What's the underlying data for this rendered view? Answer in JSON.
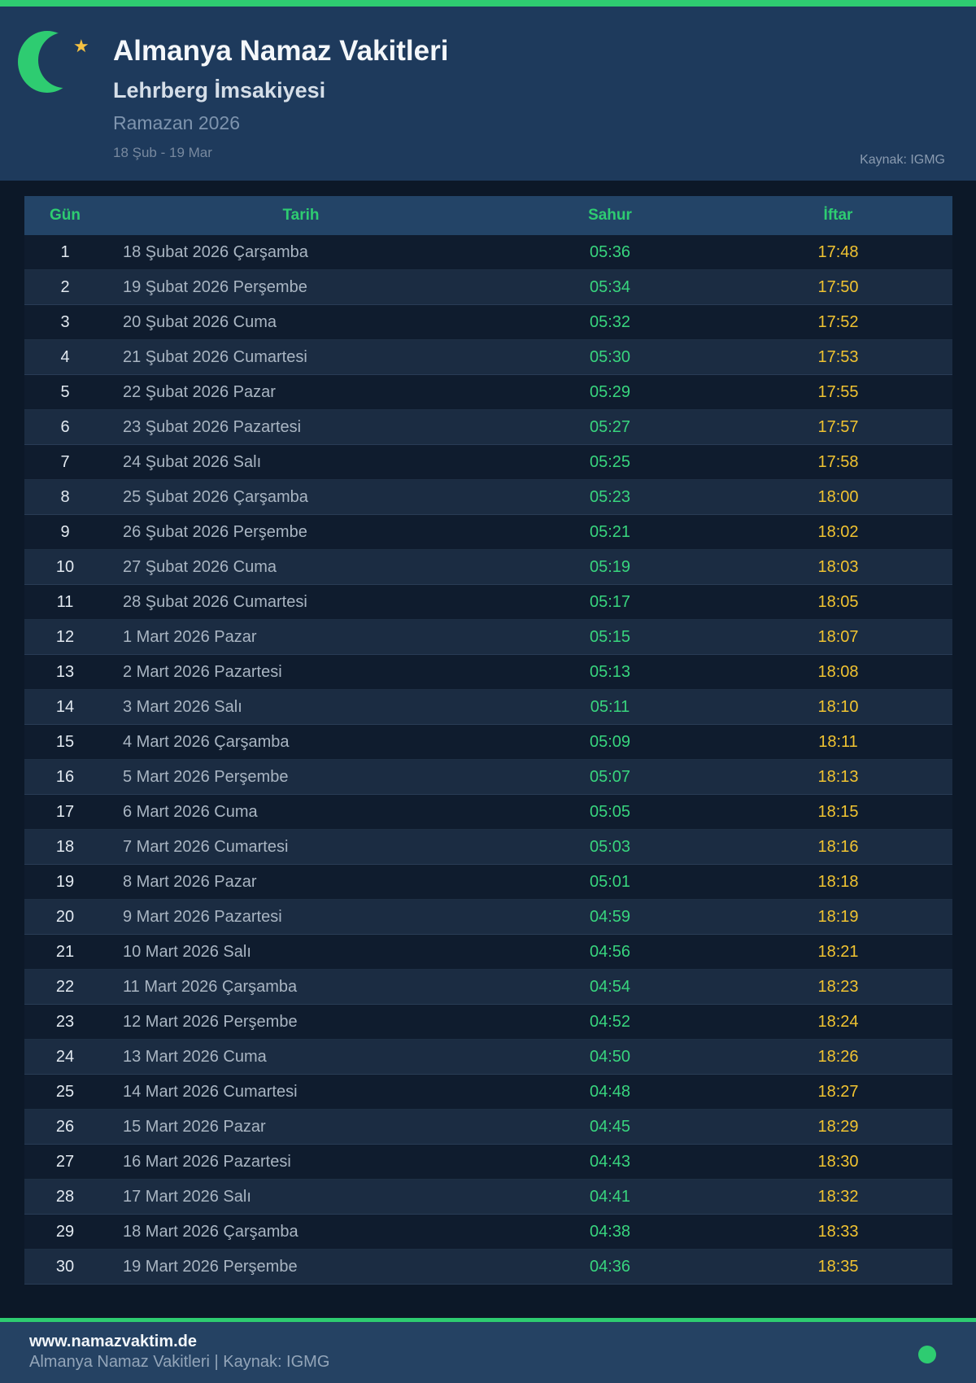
{
  "header": {
    "title": "Almanya Namaz Vakitleri",
    "subtitle": "Lehrberg İmsakiyesi",
    "period": "Ramazan 2026",
    "date_range": "18 Şub - 19 Mar",
    "source": "Kaynak: IGMG",
    "star_glyph": "★"
  },
  "colors": {
    "accent_green": "#2ecc71",
    "sahur_green": "#38d57e",
    "iftar_gold": "#f0c331",
    "header_bg": "#1e3a5c",
    "page_bg": "#0c1828",
    "table_header_bg": "#234467",
    "row_odd": "#0f1c2e",
    "row_even": "#1b2c42",
    "footer_bg": "#254263"
  },
  "table": {
    "columns": [
      "Gün",
      "Tarih",
      "Sahur",
      "İftar"
    ],
    "rows": [
      {
        "day": "1",
        "date": "18 Şubat 2026 Çarşamba",
        "sahur": "05:36",
        "iftar": "17:48"
      },
      {
        "day": "2",
        "date": "19 Şubat 2026 Perşembe",
        "sahur": "05:34",
        "iftar": "17:50"
      },
      {
        "day": "3",
        "date": "20 Şubat 2026 Cuma",
        "sahur": "05:32",
        "iftar": "17:52"
      },
      {
        "day": "4",
        "date": "21 Şubat 2026 Cumartesi",
        "sahur": "05:30",
        "iftar": "17:53"
      },
      {
        "day": "5",
        "date": "22 Şubat 2026 Pazar",
        "sahur": "05:29",
        "iftar": "17:55"
      },
      {
        "day": "6",
        "date": "23 Şubat 2026 Pazartesi",
        "sahur": "05:27",
        "iftar": "17:57"
      },
      {
        "day": "7",
        "date": "24 Şubat 2026 Salı",
        "sahur": "05:25",
        "iftar": "17:58"
      },
      {
        "day": "8",
        "date": "25 Şubat 2026 Çarşamba",
        "sahur": "05:23",
        "iftar": "18:00"
      },
      {
        "day": "9",
        "date": "26 Şubat 2026 Perşembe",
        "sahur": "05:21",
        "iftar": "18:02"
      },
      {
        "day": "10",
        "date": "27 Şubat 2026 Cuma",
        "sahur": "05:19",
        "iftar": "18:03"
      },
      {
        "day": "11",
        "date": "28 Şubat 2026 Cumartesi",
        "sahur": "05:17",
        "iftar": "18:05"
      },
      {
        "day": "12",
        "date": "1 Mart 2026 Pazar",
        "sahur": "05:15",
        "iftar": "18:07"
      },
      {
        "day": "13",
        "date": "2 Mart 2026 Pazartesi",
        "sahur": "05:13",
        "iftar": "18:08"
      },
      {
        "day": "14",
        "date": "3 Mart 2026 Salı",
        "sahur": "05:11",
        "iftar": "18:10"
      },
      {
        "day": "15",
        "date": "4 Mart 2026 Çarşamba",
        "sahur": "05:09",
        "iftar": "18:11"
      },
      {
        "day": "16",
        "date": "5 Mart 2026 Perşembe",
        "sahur": "05:07",
        "iftar": "18:13"
      },
      {
        "day": "17",
        "date": "6 Mart 2026 Cuma",
        "sahur": "05:05",
        "iftar": "18:15"
      },
      {
        "day": "18",
        "date": "7 Mart 2026 Cumartesi",
        "sahur": "05:03",
        "iftar": "18:16"
      },
      {
        "day": "19",
        "date": "8 Mart 2026 Pazar",
        "sahur": "05:01",
        "iftar": "18:18"
      },
      {
        "day": "20",
        "date": "9 Mart 2026 Pazartesi",
        "sahur": "04:59",
        "iftar": "18:19"
      },
      {
        "day": "21",
        "date": "10 Mart 2026 Salı",
        "sahur": "04:56",
        "iftar": "18:21"
      },
      {
        "day": "22",
        "date": "11 Mart 2026 Çarşamba",
        "sahur": "04:54",
        "iftar": "18:23"
      },
      {
        "day": "23",
        "date": "12 Mart 2026 Perşembe",
        "sahur": "04:52",
        "iftar": "18:24"
      },
      {
        "day": "24",
        "date": "13 Mart 2026 Cuma",
        "sahur": "04:50",
        "iftar": "18:26"
      },
      {
        "day": "25",
        "date": "14 Mart 2026 Cumartesi",
        "sahur": "04:48",
        "iftar": "18:27"
      },
      {
        "day": "26",
        "date": "15 Mart 2026 Pazar",
        "sahur": "04:45",
        "iftar": "18:29"
      },
      {
        "day": "27",
        "date": "16 Mart 2026 Pazartesi",
        "sahur": "04:43",
        "iftar": "18:30"
      },
      {
        "day": "28",
        "date": "17 Mart 2026 Salı",
        "sahur": "04:41",
        "iftar": "18:32"
      },
      {
        "day": "29",
        "date": "18 Mart 2026 Çarşamba",
        "sahur": "04:38",
        "iftar": "18:33"
      },
      {
        "day": "30",
        "date": "19 Mart 2026 Perşembe",
        "sahur": "04:36",
        "iftar": "18:35"
      }
    ]
  },
  "footer": {
    "site": "www.namazvaktim.de",
    "line": "Almanya Namaz Vakitleri | Kaynak: IGMG"
  }
}
